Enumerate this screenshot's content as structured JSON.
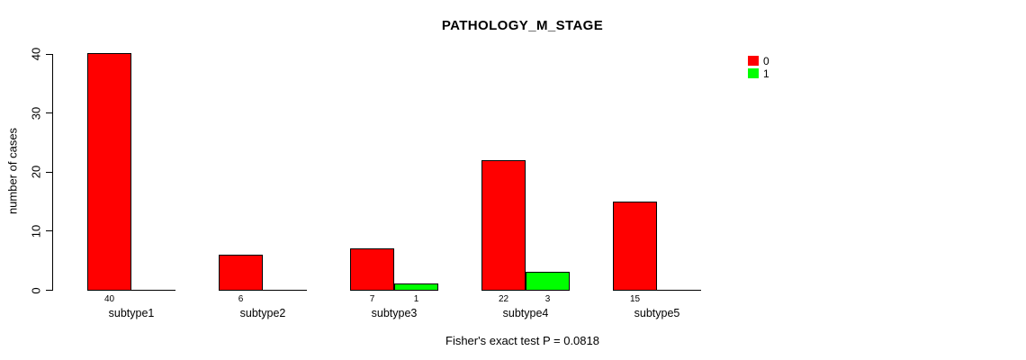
{
  "chart_data": {
    "type": "bar",
    "title": "PATHOLOGY_M_STAGE",
    "ylabel": "number of cases",
    "xlabel": "",
    "footer": "Fisher's exact test P = 0.0818",
    "categories": [
      "subtype1",
      "subtype2",
      "subtype3",
      "subtype4",
      "subtype5"
    ],
    "series": [
      {
        "name": "0",
        "color": "#FF0000",
        "values": [
          40,
          6,
          7,
          22,
          15
        ]
      },
      {
        "name": "1",
        "color": "#00FF00",
        "values": [
          0,
          0,
          1,
          3,
          0
        ]
      }
    ],
    "ylim": [
      0,
      40
    ],
    "yticks": [
      0,
      10,
      20,
      30,
      40
    ],
    "grid": false,
    "legend_position": "top-right",
    "value_labels": "bar count shown under each bar when value > 0",
    "background": "#FFFFFF",
    "axis_color": "#000000"
  }
}
